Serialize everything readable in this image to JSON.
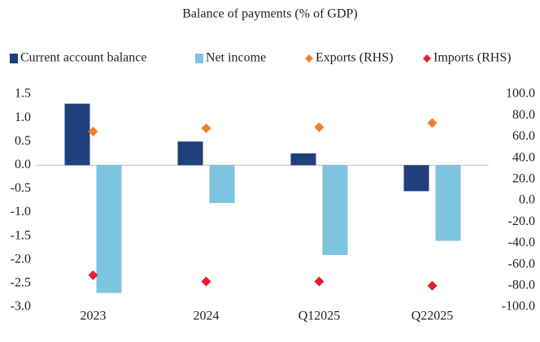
{
  "chart_data": {
    "type": "bar",
    "title": "Balance of payments (% of GDP)",
    "categories": [
      "2023",
      "2024",
      "Q12025",
      "Q22025"
    ],
    "series": [
      {
        "name": "Current account balance",
        "type": "bar",
        "color": "#1f3f7d",
        "values": [
          1.3,
          0.5,
          0.25,
          -0.55
        ]
      },
      {
        "name": "Net income",
        "type": "bar",
        "color": "#7cc4df",
        "values": [
          -2.7,
          -0.8,
          -1.9,
          -1.6
        ]
      },
      {
        "name": "Exports (RHS)",
        "type": "scatter",
        "axis": "y2",
        "color": "#f07f2b",
        "values": [
          65,
          68,
          69,
          73
        ]
      },
      {
        "name": "Imports (RHS)",
        "type": "scatter",
        "axis": "y2",
        "color": "#e2202c",
        "values": [
          -70,
          -76,
          -76,
          -80
        ]
      }
    ],
    "ylim": [
      -3,
      1.5
    ],
    "yticks": [
      1.5,
      {
        "value": 1,
        "label": "1.0"
      },
      0.5,
      {
        "value": 0,
        "label": "0.0"
      },
      -0.5,
      {
        "value": -1,
        "label": "-1.0"
      },
      -1.5,
      {
        "value": -2,
        "label": "-2.0"
      },
      -2.5,
      {
        "value": -3,
        "label": "-3.0"
      }
    ],
    "y2lim": [
      -100,
      100
    ],
    "y2ticks": [
      {
        "value": 100,
        "label": "100.0"
      },
      {
        "value": 80,
        "label": "80.0"
      },
      {
        "value": 60,
        "label": "60.0"
      },
      {
        "value": 40,
        "label": "40.0"
      },
      {
        "value": 20,
        "label": "20.0"
      },
      {
        "value": 0,
        "label": "0.0"
      },
      {
        "value": -20,
        "label": "-20.0"
      },
      {
        "value": -40,
        "label": "-40.0"
      },
      {
        "value": -60,
        "label": "-60.0"
      },
      {
        "value": -80,
        "label": "-80.0"
      },
      {
        "value": -100,
        "label": "-100.0"
      }
    ],
    "legend": "top",
    "grid": false
  }
}
